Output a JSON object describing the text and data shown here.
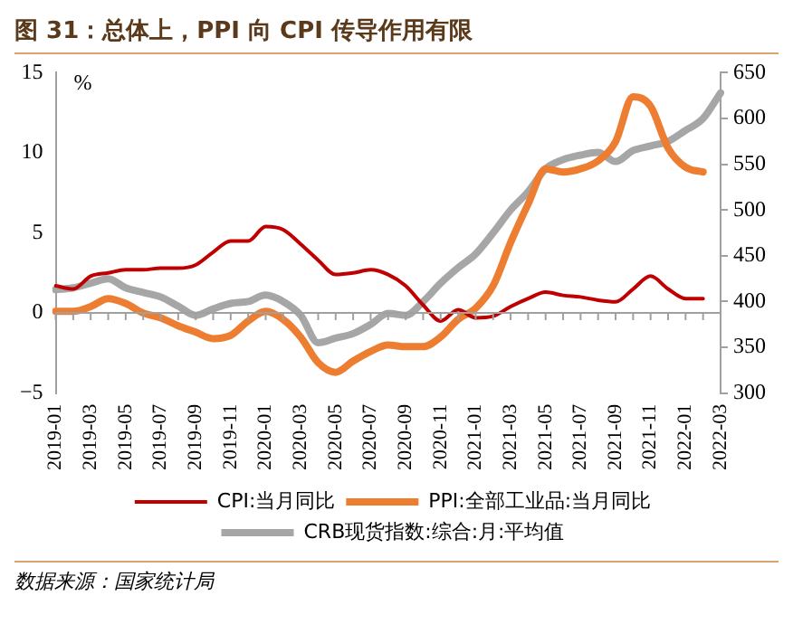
{
  "chart_data": {
    "type": "line",
    "title": "图 31：总体上，PPI 向 CPI 传导作用有限",
    "ylabel": "%",
    "categories": [
      "2019-01",
      null,
      "2019-03",
      null,
      "2019-05",
      null,
      "2019-07",
      null,
      "2019-09",
      null,
      "2019-11",
      null,
      "2020-01",
      null,
      "2020-03",
      null,
      "2020-05",
      null,
      "2020-07",
      null,
      "2020-09",
      null,
      "2020-11",
      null,
      "2021-01",
      null,
      "2021-03",
      null,
      "2021-05",
      null,
      "2021-07",
      null,
      "2021-09",
      null,
      "2021-11",
      null,
      "2022-01",
      null,
      "2022-03"
    ],
    "series": [
      {
        "name": "CPI:当月同比",
        "color": "#c00000",
        "values": [
          1.7,
          1.5,
          2.3,
          2.5,
          2.7,
          2.7,
          2.8,
          2.8,
          3.0,
          3.8,
          4.5,
          4.5,
          5.4,
          5.2,
          4.3,
          3.3,
          2.4,
          2.5,
          2.7,
          2.4,
          1.7,
          0.5,
          -0.5,
          0.2,
          -0.3,
          -0.2,
          0.4,
          0.9,
          1.3,
          1.1,
          1.0,
          0.8,
          0.7,
          1.5,
          2.3,
          1.5,
          0.9,
          0.9,
          null
        ]
      },
      {
        "name": "PPI:全部工业品:当月同比",
        "color": "#ed7d31",
        "values": [
          0.1,
          0.1,
          0.4,
          0.9,
          0.6,
          0.0,
          -0.3,
          -0.8,
          -1.2,
          -1.6,
          -1.4,
          -0.5,
          0.1,
          -0.4,
          -1.5,
          -3.1,
          -3.7,
          -3.0,
          -2.4,
          -2.0,
          -2.1,
          -2.1,
          -1.5,
          -0.4,
          0.3,
          1.7,
          4.4,
          6.8,
          9.0,
          8.8,
          9.0,
          9.5,
          10.7,
          13.5,
          12.9,
          10.3,
          9.1,
          8.8,
          null
        ]
      },
      {
        "name": "CRB现货指数:综合:月:平均值",
        "color": "#a6a6a6",
        "axis": "y2",
        "values": [
          413,
          415,
          420,
          425,
          415,
          410,
          405,
          395,
          385,
          392,
          398,
          400,
          407,
          400,
          385,
          355,
          360,
          365,
          375,
          387,
          385,
          400,
          420,
          437,
          452,
          475,
          500,
          520,
          545,
          555,
          560,
          563,
          553,
          565,
          570,
          575,
          587,
          600,
          628
        ]
      }
    ],
    "ylim": [
      -5,
      15
    ],
    "yticks": [
      -5,
      0,
      5,
      10,
      15
    ],
    "y2lim": [
      300,
      650
    ],
    "y2ticks": [
      300,
      350,
      400,
      450,
      500,
      550,
      600,
      650
    ],
    "legend": "bottom",
    "annotations": [
      "数据来源：国家统计局"
    ]
  }
}
